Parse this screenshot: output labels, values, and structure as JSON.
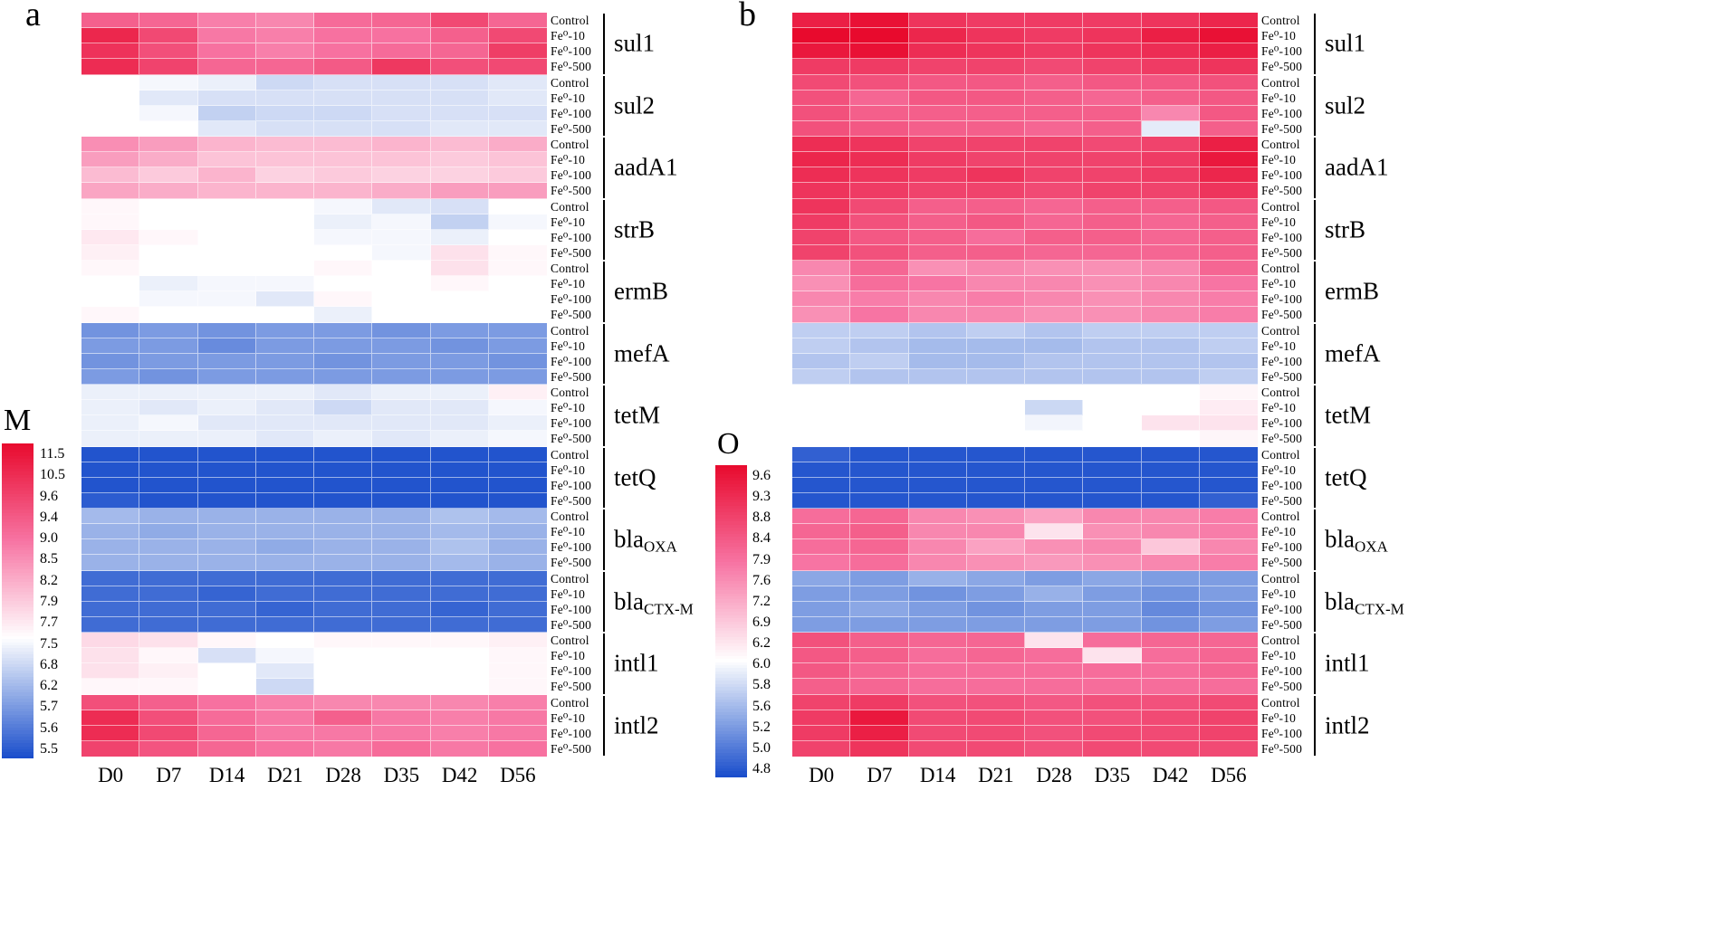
{
  "chart_data": {
    "type": "heatmap",
    "columns": [
      "D0",
      "D7",
      "D14",
      "D21",
      "D28",
      "D35",
      "D42",
      "D56"
    ],
    "treatments": [
      "Control",
      "Fe⁰-10",
      "Fe⁰-100",
      "Fe⁰-500"
    ],
    "genes": [
      {
        "name": "sul1",
        "sub": ""
      },
      {
        "name": "sul2",
        "sub": ""
      },
      {
        "name": "aadA1",
        "sub": ""
      },
      {
        "name": "strB",
        "sub": ""
      },
      {
        "name": "ermB",
        "sub": ""
      },
      {
        "name": "mefA",
        "sub": ""
      },
      {
        "name": "tetM",
        "sub": ""
      },
      {
        "name": "tetQ",
        "sub": ""
      },
      {
        "name": "bla",
        "sub": "OXA"
      },
      {
        "name": "bla",
        "sub": "CTX-M"
      },
      {
        "name": "intl1",
        "sub": ""
      },
      {
        "name": "intl2",
        "sub": ""
      }
    ],
    "colors": {
      "high": "#e80a2d",
      "mid": "#ffffff",
      "low": "#184ccb"
    },
    "panels": [
      {
        "label": "a",
        "legend_title": "M",
        "legend_ticks": [
          "11.5",
          "10.5",
          "9.6",
          "9.4",
          "9.0",
          "8.5",
          "8.2",
          "7.9",
          "7.7",
          "7.5",
          "6.8",
          "6.2",
          "5.7",
          "5.6",
          "5.5"
        ],
        "scale": {
          "min": 5.5,
          "mid": 7.8,
          "max": 11.5
        },
        "values": [
          [
            [
              10.0,
              9.9,
              9.5,
              9.4,
              9.8,
              9.9,
              10.4,
              9.9
            ],
            [
              11.0,
              10.4,
              9.6,
              9.5,
              9.7,
              9.7,
              10.0,
              10.4
            ],
            [
              10.8,
              10.3,
              9.7,
              9.5,
              9.7,
              9.8,
              9.9,
              10.6
            ],
            [
              10.9,
              10.5,
              9.9,
              9.9,
              10.1,
              10.7,
              10.3,
              10.4
            ]
          ],
          [
            [
              7.8,
              7.7,
              7.6,
              7.3,
              7.4,
              7.4,
              7.4,
              7.5
            ],
            [
              7.8,
              7.5,
              7.4,
              7.4,
              7.4,
              7.4,
              7.4,
              7.5
            ],
            [
              7.8,
              7.7,
              7.2,
              7.3,
              7.3,
              7.4,
              7.4,
              7.4
            ],
            [
              7.8,
              7.8,
              7.5,
              7.4,
              7.4,
              7.4,
              7.5,
              7.5
            ]
          ],
          [
            [
              9.3,
              9.1,
              8.8,
              8.7,
              8.7,
              8.8,
              8.7,
              8.9
            ],
            [
              9.1,
              8.9,
              8.6,
              8.6,
              8.6,
              8.6,
              8.5,
              8.6
            ],
            [
              8.7,
              8.5,
              8.8,
              8.4,
              8.5,
              8.4,
              8.4,
              8.5
            ],
            [
              9.0,
              8.9,
              8.8,
              8.8,
              8.8,
              8.9,
              9.1,
              9.1
            ]
          ],
          [
            [
              7.9,
              7.8,
              7.8,
              7.8,
              7.7,
              7.5,
              7.4,
              7.8
            ],
            [
              7.9,
              7.8,
              7.8,
              7.8,
              7.6,
              7.7,
              7.2,
              7.7
            ],
            [
              8.1,
              7.9,
              7.8,
              7.8,
              7.7,
              7.7,
              7.6,
              7.8
            ],
            [
              8.0,
              7.8,
              7.8,
              7.8,
              7.8,
              7.7,
              8.2,
              7.9
            ]
          ],
          [
            [
              7.9,
              7.8,
              7.8,
              7.8,
              7.9,
              7.8,
              8.2,
              7.9
            ],
            [
              7.8,
              7.6,
              7.7,
              7.7,
              7.8,
              7.8,
              7.9,
              7.8
            ],
            [
              7.8,
              7.7,
              7.7,
              7.5,
              7.9,
              7.8,
              7.8,
              7.8
            ],
            [
              7.9,
              7.8,
              7.8,
              7.8,
              7.6,
              7.8,
              7.8,
              7.8
            ]
          ],
          [
            [
              6.4,
              6.5,
              6.4,
              6.5,
              6.5,
              6.4,
              6.5,
              6.5
            ],
            [
              6.5,
              6.5,
              6.3,
              6.5,
              6.5,
              6.5,
              6.4,
              6.5
            ],
            [
              6.4,
              6.5,
              6.5,
              6.5,
              6.4,
              6.5,
              6.5,
              6.4
            ],
            [
              6.5,
              6.4,
              6.5,
              6.5,
              6.5,
              6.5,
              6.5,
              6.5
            ]
          ],
          [
            [
              7.6,
              7.6,
              7.6,
              7.6,
              7.5,
              7.6,
              7.6,
              8.0
            ],
            [
              7.6,
              7.5,
              7.6,
              7.5,
              7.3,
              7.5,
              7.5,
              7.7
            ],
            [
              7.6,
              7.7,
              7.5,
              7.5,
              7.5,
              7.5,
              7.5,
              7.6
            ],
            [
              7.6,
              7.6,
              7.6,
              7.5,
              7.6,
              7.5,
              7.6,
              7.7
            ]
          ],
          [
            [
              5.6,
              5.6,
              5.6,
              5.6,
              5.6,
              5.6,
              5.6,
              5.6
            ],
            [
              5.6,
              5.6,
              5.6,
              5.6,
              5.6,
              5.6,
              5.6,
              5.6
            ],
            [
              5.6,
              5.6,
              5.6,
              5.6,
              5.6,
              5.6,
              5.6,
              5.6
            ],
            [
              5.7,
              5.6,
              5.6,
              5.6,
              5.6,
              5.6,
              5.6,
              5.6
            ]
          ],
          [
            [
              6.9,
              6.8,
              6.8,
              6.8,
              6.8,
              6.8,
              7.0,
              6.9
            ],
            [
              6.8,
              6.7,
              6.8,
              6.8,
              6.8,
              6.8,
              6.9,
              6.8
            ],
            [
              6.8,
              6.8,
              6.8,
              6.7,
              6.8,
              6.8,
              7.0,
              6.8
            ],
            [
              6.8,
              6.8,
              6.8,
              6.8,
              6.8,
              6.8,
              6.9,
              6.8
            ]
          ],
          [
            [
              5.9,
              5.9,
              5.9,
              5.9,
              5.9,
              5.9,
              5.9,
              5.9
            ],
            [
              5.9,
              5.9,
              5.8,
              5.9,
              5.9,
              5.9,
              5.9,
              5.9
            ],
            [
              5.9,
              5.9,
              5.9,
              5.8,
              5.9,
              5.9,
              5.8,
              5.9
            ],
            [
              5.9,
              5.9,
              5.9,
              5.9,
              5.9,
              5.9,
              5.9,
              5.9
            ]
          ],
          [
            [
              8.3,
              8.2,
              7.9,
              7.8,
              7.9,
              7.9,
              7.9,
              8.0
            ],
            [
              8.2,
              7.9,
              7.4,
              7.7,
              7.8,
              7.8,
              7.8,
              7.9
            ],
            [
              8.2,
              8.0,
              7.8,
              7.5,
              7.8,
              7.8,
              7.8,
              7.9
            ],
            [
              7.9,
              7.9,
              7.8,
              7.3,
              7.8,
              7.8,
              7.8,
              7.9
            ]
          ],
          [
            [
              10.3,
              10.0,
              9.7,
              9.5,
              9.4,
              9.4,
              9.4,
              9.5
            ],
            [
              10.9,
              10.3,
              9.8,
              9.6,
              10.0,
              9.6,
              9.5,
              9.6
            ],
            [
              10.9,
              10.4,
              9.9,
              9.6,
              9.6,
              9.6,
              9.5,
              9.6
            ],
            [
              10.5,
              10.2,
              9.9,
              9.7,
              9.6,
              9.8,
              9.6,
              9.7
            ]
          ]
        ]
      },
      {
        "label": "b",
        "legend_title": "O",
        "legend_ticks": [
          "9.6",
          "9.3",
          "8.8",
          "8.4",
          "7.9",
          "7.6",
          "7.2",
          "6.9",
          "6.2",
          "6.0",
          "5.8",
          "5.6",
          "5.2",
          "5.0",
          "4.8"
        ],
        "scale": {
          "min": 4.8,
          "mid": 6.6,
          "max": 9.6
        },
        "values": [
          [
            [
              9.3,
              9.5,
              9.0,
              8.9,
              8.9,
              8.9,
              9.0,
              9.2
            ],
            [
              9.6,
              9.6,
              9.2,
              9.0,
              8.9,
              9.0,
              9.3,
              9.5
            ],
            [
              9.4,
              9.5,
              9.1,
              9.0,
              8.9,
              9.0,
              9.1,
              9.3
            ],
            [
              8.9,
              8.9,
              8.8,
              8.8,
              8.7,
              8.8,
              8.9,
              9.0
            ]
          ],
          [
            [
              8.7,
              8.6,
              8.5,
              8.5,
              8.4,
              8.5,
              8.5,
              8.6
            ],
            [
              8.6,
              8.3,
              8.5,
              8.5,
              8.4,
              8.3,
              8.4,
              8.5
            ],
            [
              8.6,
              8.4,
              8.4,
              8.4,
              8.4,
              8.4,
              7.9,
              8.5
            ],
            [
              8.6,
              8.5,
              8.4,
              8.4,
              8.3,
              8.4,
              6.4,
              8.4
            ]
          ],
          [
            [
              9.1,
              9.0,
              8.8,
              8.8,
              8.8,
              8.7,
              8.8,
              9.3
            ],
            [
              9.2,
              9.1,
              8.9,
              8.8,
              8.8,
              8.8,
              8.9,
              9.4
            ],
            [
              9.1,
              9.0,
              8.9,
              9.0,
              8.8,
              8.8,
              8.9,
              9.2
            ],
            [
              9.0,
              8.9,
              8.8,
              8.8,
              8.7,
              8.8,
              8.8,
              9.0
            ]
          ],
          [
            [
              9.0,
              8.7,
              8.4,
              8.4,
              8.3,
              8.4,
              8.4,
              8.5
            ],
            [
              8.9,
              8.6,
              8.4,
              8.5,
              8.3,
              8.4,
              8.3,
              8.4
            ],
            [
              8.8,
              8.5,
              8.4,
              8.2,
              8.4,
              8.4,
              8.3,
              8.4
            ],
            [
              8.8,
              8.6,
              8.4,
              8.4,
              8.3,
              8.3,
              8.3,
              8.4
            ]
          ],
          [
            [
              7.9,
              8.3,
              7.8,
              7.9,
              7.8,
              7.8,
              7.9,
              8.3
            ],
            [
              7.8,
              8.2,
              8.1,
              7.9,
              7.9,
              7.8,
              7.9,
              8.1
            ],
            [
              7.9,
              8.0,
              7.9,
              8.0,
              7.9,
              7.8,
              7.9,
              8.0
            ],
            [
              7.8,
              8.1,
              7.9,
              7.9,
              7.8,
              7.8,
              7.9,
              8.0
            ]
          ],
          [
            [
              6.1,
              6.1,
              6.0,
              6.1,
              6.0,
              6.1,
              6.1,
              6.1
            ],
            [
              6.1,
              6.0,
              5.9,
              5.9,
              5.9,
              6.0,
              6.0,
              6.1
            ],
            [
              6.0,
              6.1,
              5.9,
              5.9,
              6.0,
              6.0,
              6.0,
              6.0
            ],
            [
              6.1,
              6.0,
              6.0,
              6.0,
              6.0,
              6.0,
              6.0,
              6.1
            ]
          ],
          [
            [
              6.6,
              6.6,
              6.6,
              6.6,
              6.6,
              6.6,
              6.6,
              6.7
            ],
            [
              6.6,
              6.6,
              6.6,
              6.6,
              6.2,
              6.6,
              6.6,
              6.8
            ],
            [
              6.6,
              6.6,
              6.6,
              6.6,
              6.5,
              6.6,
              6.9,
              6.9
            ],
            [
              6.6,
              6.6,
              6.6,
              6.6,
              6.6,
              6.6,
              6.6,
              6.7
            ]
          ],
          [
            [
              5.0,
              4.9,
              4.9,
              4.9,
              4.9,
              4.9,
              4.9,
              4.9
            ],
            [
              4.9,
              4.9,
              4.9,
              4.9,
              4.9,
              4.9,
              4.9,
              4.9
            ],
            [
              4.9,
              4.9,
              4.9,
              4.9,
              4.9,
              4.9,
              4.9,
              4.9
            ],
            [
              4.9,
              4.9,
              4.9,
              4.9,
              4.9,
              4.9,
              4.9,
              5.0
            ]
          ],
          [
            [
              8.2,
              8.3,
              7.9,
              7.8,
              7.6,
              7.9,
              7.9,
              8.0
            ],
            [
              8.3,
              8.4,
              7.9,
              7.9,
              6.9,
              7.8,
              7.9,
              8.0
            ],
            [
              8.2,
              8.3,
              7.9,
              7.6,
              7.8,
              7.9,
              7.2,
              7.9
            ],
            [
              8.1,
              8.2,
              7.9,
              7.8,
              7.7,
              7.8,
              7.9,
              8.0
            ]
          ],
          [
            [
              5.7,
              5.6,
              5.8,
              5.7,
              5.6,
              5.7,
              5.6,
              5.6
            ],
            [
              5.6,
              5.6,
              5.5,
              5.6,
              5.8,
              5.6,
              5.5,
              5.6
            ],
            [
              5.6,
              5.7,
              5.6,
              5.5,
              5.6,
              5.6,
              5.4,
              5.5
            ],
            [
              5.6,
              5.6,
              5.6,
              5.6,
              5.6,
              5.6,
              5.5,
              5.6
            ]
          ],
          [
            [
              8.6,
              8.4,
              8.3,
              8.3,
              6.9,
              8.2,
              8.3,
              8.3
            ],
            [
              8.5,
              8.4,
              8.2,
              8.3,
              8.2,
              6.9,
              8.2,
              8.3
            ],
            [
              8.5,
              8.3,
              8.2,
              8.2,
              8.2,
              8.2,
              8.2,
              8.3
            ],
            [
              8.4,
              8.3,
              8.2,
              8.2,
              8.2,
              8.2,
              8.2,
              8.2
            ]
          ],
          [
            [
              8.8,
              8.9,
              8.6,
              8.6,
              8.5,
              8.6,
              8.6,
              8.7
            ],
            [
              8.9,
              9.4,
              8.7,
              8.7,
              8.6,
              8.6,
              8.7,
              8.8
            ],
            [
              8.9,
              9.3,
              8.7,
              8.7,
              8.6,
              8.7,
              8.7,
              8.8
            ],
            [
              8.8,
              9.0,
              8.7,
              8.7,
              8.6,
              8.7,
              8.7,
              8.7
            ]
          ]
        ]
      }
    ]
  }
}
